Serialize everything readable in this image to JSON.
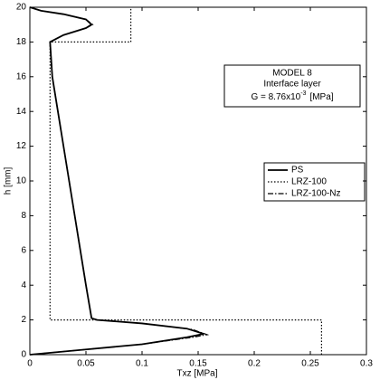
{
  "chart_data": {
    "type": "line",
    "xlabel": "Txz [MPa]",
    "ylabel": "h [mm]",
    "xlim": [
      0,
      0.3
    ],
    "ylim": [
      0,
      20
    ],
    "xticks": [
      0,
      0.05,
      0.1,
      0.15,
      0.2,
      0.25,
      0.3
    ],
    "yticks": [
      0,
      2,
      4,
      6,
      8,
      10,
      12,
      14,
      16,
      18,
      20
    ],
    "grid": false,
    "legend": "right",
    "annotation": {
      "line1": "MODEL 8",
      "line2": "Interface layer",
      "g_text": "G = 8.76x10",
      "g_exp": "-3",
      "g_unit": "[MPa]"
    },
    "series": [
      {
        "name": "PS",
        "color": "#000000",
        "dash": "solid",
        "x": [
          0,
          0.05,
          0.1,
          0.14,
          0.155,
          0.14,
          0.1,
          0.06,
          0.055,
          0.05,
          0.045,
          0.04,
          0.035,
          0.03,
          0.025,
          0.02,
          0.018,
          0.03,
          0.05,
          0.055,
          0.05,
          0.03,
          0.01,
          0
        ],
        "y": [
          0,
          0.3,
          0.6,
          1,
          1.2,
          1.5,
          1.8,
          2,
          2.1,
          4,
          6,
          8,
          10,
          12,
          14,
          16,
          18,
          18.4,
          18.8,
          19,
          19.3,
          19.6,
          19.8,
          20
        ]
      },
      {
        "name": "LRZ-100",
        "color": "#000000",
        "dash": "dotted",
        "x": [
          0.26,
          0.26,
          0.018,
          0.018,
          0.09,
          0.09
        ],
        "y": [
          0,
          2,
          2,
          18,
          18,
          20
        ]
      },
      {
        "name": "LRZ-100-Nz",
        "color": "#000000",
        "dash": "dashdot",
        "x": [
          0,
          0.05,
          0.1,
          0.145,
          0.158,
          0.145,
          0.1,
          0.06,
          0.055,
          0.05,
          0.045,
          0.04,
          0.035,
          0.03,
          0.025,
          0.02,
          0.018,
          0.03,
          0.05,
          0.056,
          0.05,
          0.03,
          0.01,
          0
        ],
        "y": [
          0,
          0.3,
          0.6,
          1,
          1.15,
          1.45,
          1.8,
          2,
          2.1,
          4,
          6,
          8,
          10,
          12,
          14,
          16,
          18,
          18.4,
          18.8,
          19,
          19.3,
          19.6,
          19.8,
          20
        ]
      }
    ]
  }
}
